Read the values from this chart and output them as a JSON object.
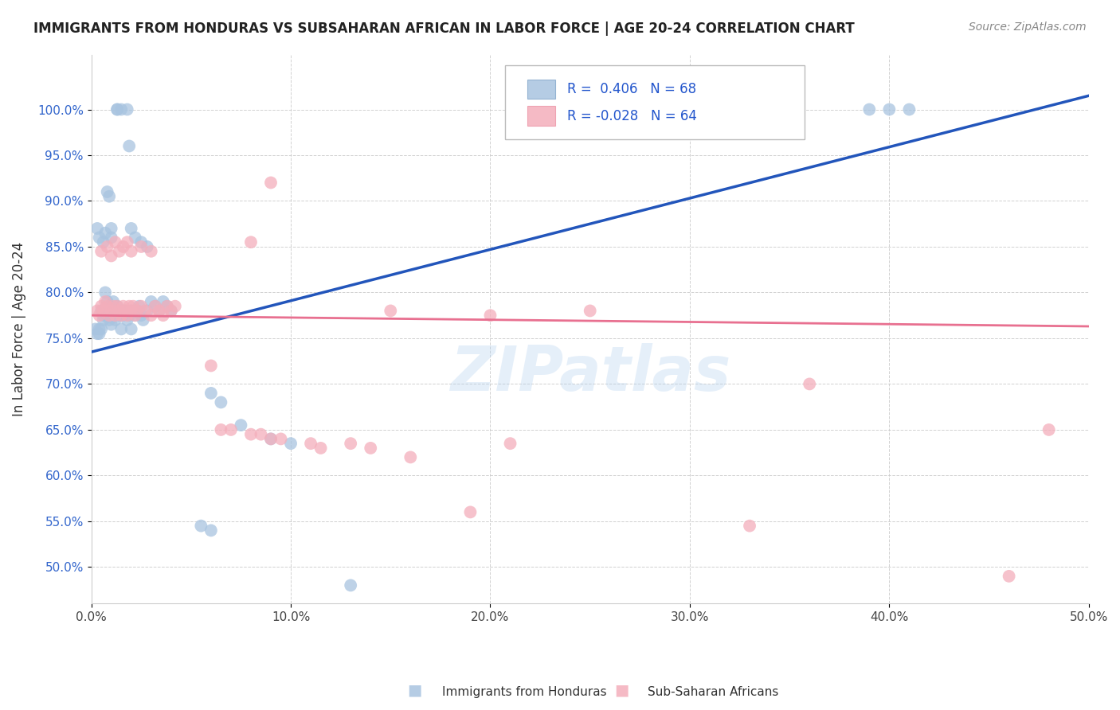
{
  "title": "IMMIGRANTS FROM HONDURAS VS SUBSAHARAN AFRICAN IN LABOR FORCE | AGE 20-24 CORRELATION CHART",
  "source": "Source: ZipAtlas.com",
  "ylabel": "In Labor Force | Age 20-24",
  "xmin": 0.0,
  "xmax": 0.5,
  "ymin": 0.46,
  "ymax": 1.06,
  "xticks": [
    0.0,
    0.1,
    0.2,
    0.3,
    0.4,
    0.5
  ],
  "xticklabels": [
    "0.0%",
    "10.0%",
    "20.0%",
    "30.0%",
    "40.0%",
    "50.0%"
  ],
  "yticks": [
    0.5,
    0.55,
    0.6,
    0.65,
    0.7,
    0.75,
    0.8,
    0.85,
    0.9,
    0.95,
    1.0
  ],
  "yticklabels": [
    "50.0%",
    "55.0%",
    "60.0%",
    "65.0%",
    "70.0%",
    "75.0%",
    "80.0%",
    "85.0%",
    "90.0%",
    "95.0%",
    "100.0%"
  ],
  "legend_label1": "Immigrants from Honduras",
  "legend_label2": "Sub-Saharan Africans",
  "blue_color": "#A8C4E0",
  "pink_color": "#F4AEBB",
  "blue_line_color": "#2255BB",
  "pink_line_color": "#E87090",
  "watermark": "ZIPatlas",
  "blue_points": [
    [
      0.002,
      0.76
    ],
    [
      0.003,
      0.755
    ],
    [
      0.004,
      0.76
    ],
    [
      0.004,
      0.755
    ],
    [
      0.005,
      0.78
    ],
    [
      0.005,
      0.76
    ],
    [
      0.006,
      0.775
    ],
    [
      0.006,
      0.77
    ],
    [
      0.007,
      0.8
    ],
    [
      0.007,
      0.78
    ],
    [
      0.008,
      0.79
    ],
    [
      0.008,
      0.775
    ],
    [
      0.009,
      0.785
    ],
    [
      0.009,
      0.77
    ],
    [
      0.01,
      0.78
    ],
    [
      0.01,
      0.765
    ],
    [
      0.011,
      0.79
    ],
    [
      0.011,
      0.775
    ],
    [
      0.012,
      0.78
    ],
    [
      0.012,
      0.77
    ],
    [
      0.013,
      0.785
    ],
    [
      0.014,
      0.775
    ],
    [
      0.015,
      0.78
    ],
    [
      0.015,
      0.76
    ],
    [
      0.016,
      0.775
    ],
    [
      0.017,
      0.78
    ],
    [
      0.018,
      0.77
    ],
    [
      0.019,
      0.775
    ],
    [
      0.02,
      0.78
    ],
    [
      0.02,
      0.76
    ],
    [
      0.022,
      0.775
    ],
    [
      0.023,
      0.78
    ],
    [
      0.024,
      0.785
    ],
    [
      0.025,
      0.775
    ],
    [
      0.026,
      0.77
    ],
    [
      0.028,
      0.78
    ],
    [
      0.03,
      0.79
    ],
    [
      0.032,
      0.785
    ],
    [
      0.034,
      0.78
    ],
    [
      0.036,
      0.79
    ],
    [
      0.038,
      0.785
    ],
    [
      0.04,
      0.78
    ],
    [
      0.003,
      0.87
    ],
    [
      0.004,
      0.86
    ],
    [
      0.013,
      1.0
    ],
    [
      0.013,
      1.0
    ],
    [
      0.015,
      1.0
    ],
    [
      0.018,
      1.0
    ],
    [
      0.019,
      0.96
    ],
    [
      0.008,
      0.91
    ],
    [
      0.009,
      0.905
    ],
    [
      0.01,
      0.87
    ],
    [
      0.01,
      0.86
    ],
    [
      0.006,
      0.855
    ],
    [
      0.007,
      0.865
    ],
    [
      0.02,
      0.87
    ],
    [
      0.022,
      0.86
    ],
    [
      0.025,
      0.855
    ],
    [
      0.028,
      0.85
    ],
    [
      0.06,
      0.69
    ],
    [
      0.065,
      0.68
    ],
    [
      0.075,
      0.655
    ],
    [
      0.09,
      0.64
    ],
    [
      0.1,
      0.635
    ],
    [
      0.055,
      0.545
    ],
    [
      0.06,
      0.54
    ],
    [
      0.13,
      0.48
    ],
    [
      0.39,
      1.0
    ],
    [
      0.4,
      1.0
    ],
    [
      0.41,
      1.0
    ]
  ],
  "pink_points": [
    [
      0.003,
      0.78
    ],
    [
      0.004,
      0.775
    ],
    [
      0.005,
      0.785
    ],
    [
      0.006,
      0.78
    ],
    [
      0.007,
      0.79
    ],
    [
      0.008,
      0.785
    ],
    [
      0.009,
      0.775
    ],
    [
      0.01,
      0.78
    ],
    [
      0.011,
      0.785
    ],
    [
      0.012,
      0.775
    ],
    [
      0.013,
      0.785
    ],
    [
      0.014,
      0.78
    ],
    [
      0.015,
      0.775
    ],
    [
      0.016,
      0.785
    ],
    [
      0.017,
      0.78
    ],
    [
      0.018,
      0.775
    ],
    [
      0.019,
      0.785
    ],
    [
      0.02,
      0.78
    ],
    [
      0.021,
      0.785
    ],
    [
      0.022,
      0.775
    ],
    [
      0.023,
      0.78
    ],
    [
      0.025,
      0.785
    ],
    [
      0.027,
      0.78
    ],
    [
      0.03,
      0.775
    ],
    [
      0.032,
      0.785
    ],
    [
      0.034,
      0.78
    ],
    [
      0.036,
      0.775
    ],
    [
      0.038,
      0.785
    ],
    [
      0.04,
      0.78
    ],
    [
      0.042,
      0.785
    ],
    [
      0.005,
      0.845
    ],
    [
      0.008,
      0.85
    ],
    [
      0.01,
      0.84
    ],
    [
      0.012,
      0.855
    ],
    [
      0.014,
      0.845
    ],
    [
      0.016,
      0.85
    ],
    [
      0.018,
      0.855
    ],
    [
      0.02,
      0.845
    ],
    [
      0.025,
      0.85
    ],
    [
      0.03,
      0.845
    ],
    [
      0.08,
      0.855
    ],
    [
      0.09,
      0.92
    ],
    [
      0.15,
      0.78
    ],
    [
      0.2,
      0.775
    ],
    [
      0.25,
      0.78
    ],
    [
      0.06,
      0.72
    ],
    [
      0.065,
      0.65
    ],
    [
      0.07,
      0.65
    ],
    [
      0.08,
      0.645
    ],
    [
      0.085,
      0.645
    ],
    [
      0.09,
      0.64
    ],
    [
      0.095,
      0.64
    ],
    [
      0.11,
      0.635
    ],
    [
      0.115,
      0.63
    ],
    [
      0.13,
      0.635
    ],
    [
      0.14,
      0.63
    ],
    [
      0.16,
      0.62
    ],
    [
      0.21,
      0.635
    ],
    [
      0.19,
      0.56
    ],
    [
      0.33,
      0.545
    ],
    [
      0.36,
      0.7
    ],
    [
      0.46,
      0.49
    ],
    [
      0.48,
      0.65
    ]
  ]
}
